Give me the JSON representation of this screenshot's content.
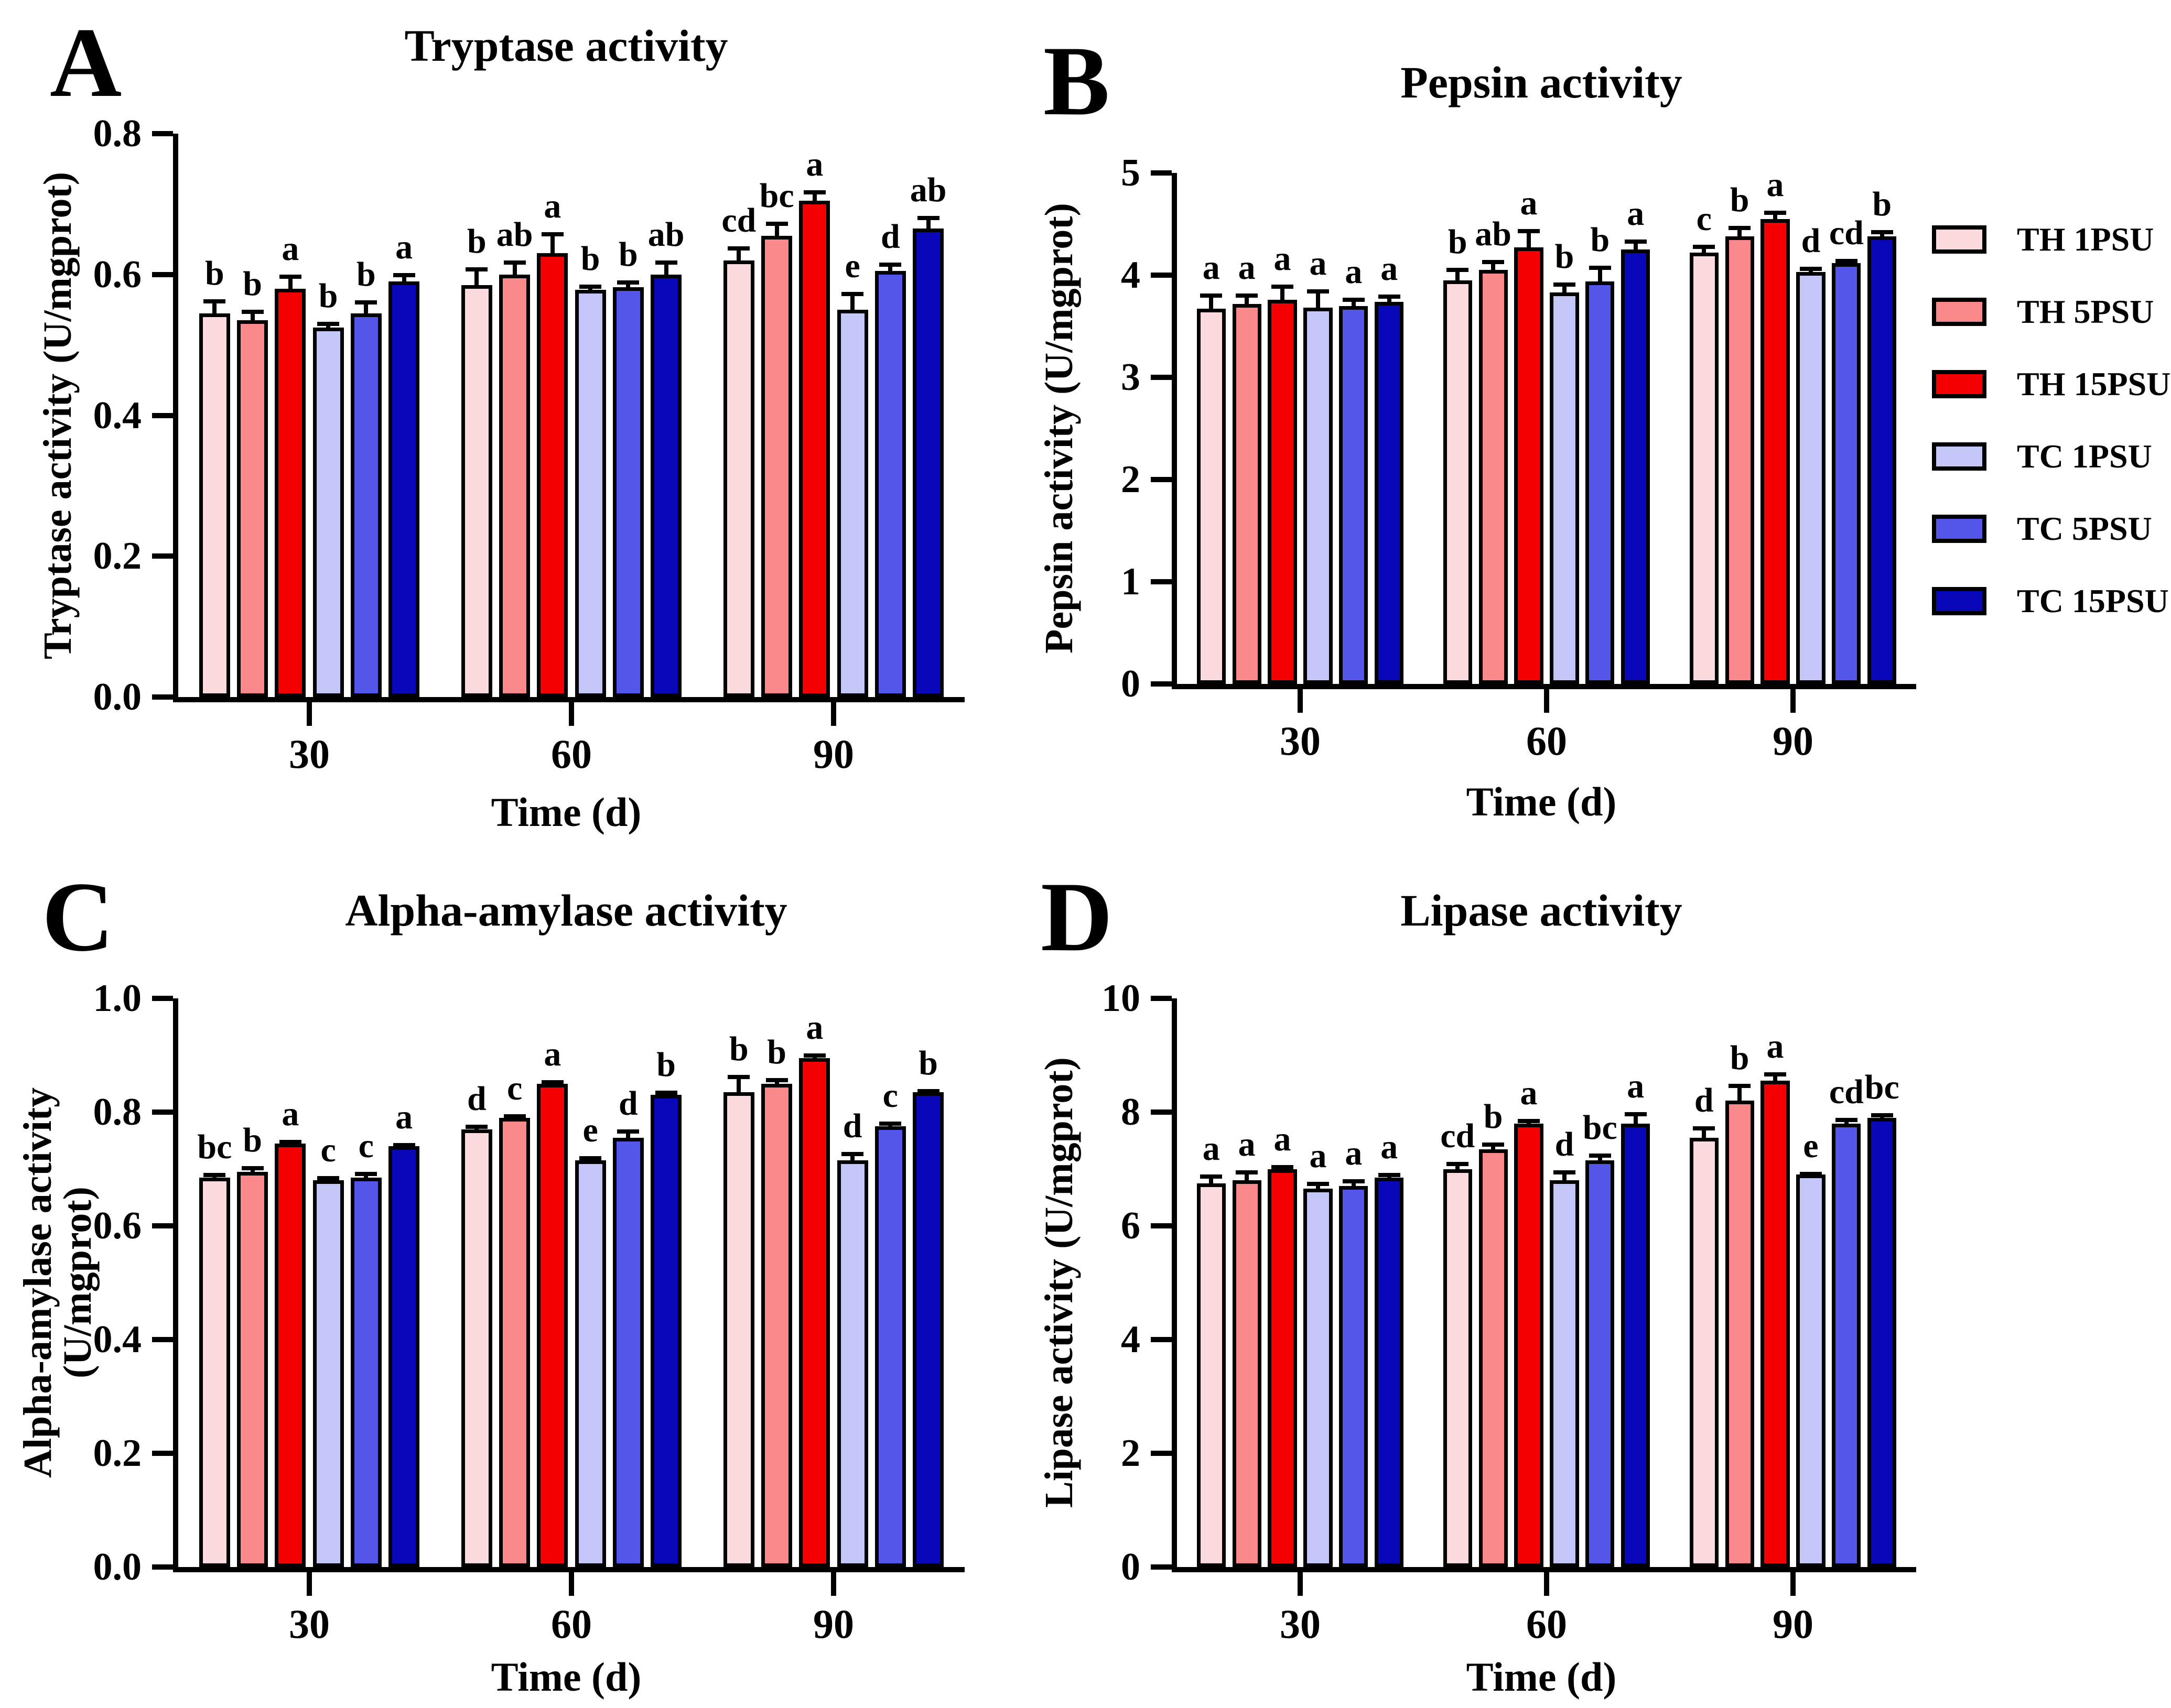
{
  "legend": {
    "items": [
      {
        "label": "TH 1PSU",
        "color": "#FBDBDD"
      },
      {
        "label": "TH 5PSU",
        "color": "#F9898A"
      },
      {
        "label": "TH 15PSU",
        "color": "#F40000"
      },
      {
        "label": "TC 1PSU",
        "color": "#C4C6F7"
      },
      {
        "label": "TC 5PSU",
        "color": "#5356E8"
      },
      {
        "label": "TC 15PSU",
        "color": "#0808B8"
      }
    ]
  },
  "chart_data": [
    {
      "type": "bar",
      "panel_letter": "A",
      "title": "Tryptase activity",
      "xlabel": "Time (d)",
      "ylabel": "Tryptase activity (U/mgprot)",
      "ylim": [
        0,
        0.8
      ],
      "yticks": [
        0,
        0.2,
        0.4,
        0.6,
        0.8
      ],
      "ytick_labels": [
        "0.0",
        "0.2",
        "0.4",
        "0.6",
        "0.8"
      ],
      "categories": [
        "30",
        "60",
        "90"
      ],
      "grid": false,
      "legend_position": "right",
      "series": [
        {
          "name": "TH 1PSU",
          "color": "#FBDBDD",
          "values": [
            0.545,
            0.585,
            0.62
          ],
          "errors": [
            0.02,
            0.025,
            0.02
          ],
          "letters": [
            "b",
            "b",
            "cd"
          ]
        },
        {
          "name": "TH 5PSU",
          "color": "#F9898A",
          "values": [
            0.535,
            0.6,
            0.655
          ],
          "errors": [
            0.015,
            0.02,
            0.02
          ],
          "letters": [
            "b",
            "ab",
            "bc"
          ]
        },
        {
          "name": "TH 15PSU",
          "color": "#F40000",
          "values": [
            0.58,
            0.63,
            0.705
          ],
          "errors": [
            0.02,
            0.03,
            0.015
          ],
          "letters": [
            "a",
            "a",
            "a"
          ]
        },
        {
          "name": "TC 1PSU",
          "color": "#C4C6F7",
          "values": [
            0.525,
            0.578,
            0.55
          ],
          "errors": [
            0.008,
            0.008,
            0.025
          ],
          "letters": [
            "b",
            "b",
            "e"
          ]
        },
        {
          "name": "TC 5PSU",
          "color": "#5356E8",
          "values": [
            0.545,
            0.582,
            0.605
          ],
          "errors": [
            0.018,
            0.01,
            0.012
          ],
          "letters": [
            "b",
            "b",
            "d"
          ]
        },
        {
          "name": "TC 15PSU",
          "color": "#0808B8",
          "values": [
            0.59,
            0.6,
            0.665
          ],
          "errors": [
            0.012,
            0.02,
            0.018
          ],
          "letters": [
            "a",
            "ab",
            "ab"
          ]
        }
      ]
    },
    {
      "type": "bar",
      "panel_letter": "B",
      "title": "Pepsin activity",
      "xlabel": "Time (d)",
      "ylabel": "Pepsin activity (U/mgprot)",
      "ylim": [
        0,
        5
      ],
      "yticks": [
        0,
        1,
        2,
        3,
        4,
        5
      ],
      "ytick_labels": [
        "0",
        "1",
        "2",
        "3",
        "4",
        "5"
      ],
      "categories": [
        "30",
        "60",
        "90"
      ],
      "grid": false,
      "legend_position": "right",
      "series": [
        {
          "name": "TH 1PSU",
          "color": "#FBDBDD",
          "values": [
            3.67,
            3.95,
            4.22
          ],
          "errors": [
            0.15,
            0.12,
            0.08
          ],
          "letters": [
            "a",
            "b",
            "c"
          ]
        },
        {
          "name": "TH 5PSU",
          "color": "#F9898A",
          "values": [
            3.72,
            4.05,
            4.38
          ],
          "errors": [
            0.1,
            0.1,
            0.1
          ],
          "letters": [
            "a",
            "ab",
            "b"
          ]
        },
        {
          "name": "TH 15PSU",
          "color": "#F40000",
          "values": [
            3.76,
            4.27,
            4.55
          ],
          "errors": [
            0.15,
            0.18,
            0.08
          ],
          "letters": [
            "a",
            "a",
            "a"
          ]
        },
        {
          "name": "TC 1PSU",
          "color": "#C4C6F7",
          "values": [
            3.68,
            3.83,
            4.03
          ],
          "errors": [
            0.18,
            0.1,
            0.05
          ],
          "letters": [
            "a",
            "b",
            "d"
          ]
        },
        {
          "name": "TC 5PSU",
          "color": "#5356E8",
          "values": [
            3.7,
            3.94,
            4.12
          ],
          "errors": [
            0.08,
            0.15,
            0.04
          ],
          "letters": [
            "a",
            "b",
            "cd"
          ]
        },
        {
          "name": "TC 15PSU",
          "color": "#0808B8",
          "values": [
            3.74,
            4.25,
            4.38
          ],
          "errors": [
            0.07,
            0.1,
            0.06
          ],
          "letters": [
            "a",
            "a",
            "b"
          ]
        }
      ]
    },
    {
      "type": "bar",
      "panel_letter": "C",
      "title": "Alpha-amylase activity",
      "xlabel": "Time (d)",
      "ylabel": "Alpha-amylase activity (U/mgprot)",
      "ylim": [
        0,
        1.0
      ],
      "yticks": [
        0,
        0.2,
        0.4,
        0.6,
        0.8,
        1.0
      ],
      "ytick_labels": [
        "0.0",
        "0.2",
        "0.4",
        "0.6",
        "0.8",
        "1.0"
      ],
      "categories": [
        "30",
        "60",
        "90"
      ],
      "grid": false,
      "legend_position": "right",
      "series": [
        {
          "name": "TH 1PSU",
          "color": "#FBDBDD",
          "values": [
            0.685,
            0.77,
            0.835
          ],
          "errors": [
            0.008,
            0.008,
            0.03
          ],
          "letters": [
            "bc",
            "d",
            "b"
          ]
        },
        {
          "name": "TH 5PSU",
          "color": "#F9898A",
          "values": [
            0.695,
            0.79,
            0.85
          ],
          "errors": [
            0.01,
            0.006,
            0.01
          ],
          "letters": [
            "b",
            "c",
            "b"
          ]
        },
        {
          "name": "TH 15PSU",
          "color": "#F40000",
          "values": [
            0.745,
            0.85,
            0.895
          ],
          "errors": [
            0.006,
            0.006,
            0.008
          ],
          "letters": [
            "a",
            "a",
            "a"
          ]
        },
        {
          "name": "TC 1PSU",
          "color": "#C4C6F7",
          "values": [
            0.68,
            0.715,
            0.715
          ],
          "errors": [
            0.008,
            0.008,
            0.015
          ],
          "letters": [
            "c",
            "e",
            "d"
          ]
        },
        {
          "name": "TC 5PSU",
          "color": "#5356E8",
          "values": [
            0.685,
            0.755,
            0.775
          ],
          "errors": [
            0.01,
            0.015,
            0.008
          ],
          "letters": [
            "c",
            "d",
            "c"
          ]
        },
        {
          "name": "TC 15PSU",
          "color": "#0808B8",
          "values": [
            0.74,
            0.83,
            0.835
          ],
          "errors": [
            0.006,
            0.008,
            0.006
          ],
          "letters": [
            "a",
            "b",
            "b"
          ]
        }
      ]
    },
    {
      "type": "bar",
      "panel_letter": "D",
      "title": "Lipase activity",
      "xlabel": "Time (d)",
      "ylabel": "Lipase activity (U/mgprot)",
      "ylim": [
        0,
        10
      ],
      "yticks": [
        0,
        2,
        4,
        6,
        8,
        10
      ],
      "ytick_labels": [
        "0",
        "2",
        "4",
        "6",
        "8",
        "10"
      ],
      "categories": [
        "30",
        "60",
        "90"
      ],
      "grid": false,
      "legend_position": "right",
      "series": [
        {
          "name": "TH 1PSU",
          "color": "#FBDBDD",
          "values": [
            6.75,
            7.0,
            7.55
          ],
          "errors": [
            0.15,
            0.12,
            0.2
          ],
          "letters": [
            "a",
            "cd",
            "d"
          ]
        },
        {
          "name": "TH 5PSU",
          "color": "#F9898A",
          "values": [
            6.8,
            7.35,
            8.2
          ],
          "errors": [
            0.18,
            0.12,
            0.3
          ],
          "letters": [
            "a",
            "b",
            "b"
          ]
        },
        {
          "name": "TH 15PSU",
          "color": "#F40000",
          "values": [
            7.0,
            7.8,
            8.55
          ],
          "errors": [
            0.07,
            0.08,
            0.15
          ],
          "letters": [
            "a",
            "a",
            "a"
          ]
        },
        {
          "name": "TC 1PSU",
          "color": "#C4C6F7",
          "values": [
            6.65,
            6.8,
            6.9
          ],
          "errors": [
            0.12,
            0.18,
            0.05
          ],
          "letters": [
            "a",
            "d",
            "e"
          ]
        },
        {
          "name": "TC 5PSU",
          "color": "#5356E8",
          "values": [
            6.7,
            7.15,
            7.8
          ],
          "errors": [
            0.12,
            0.12,
            0.1
          ],
          "letters": [
            "a",
            "bc",
            "cd"
          ]
        },
        {
          "name": "TC 15PSU",
          "color": "#0808B8",
          "values": [
            6.85,
            7.8,
            7.9
          ],
          "errors": [
            0.08,
            0.2,
            0.08
          ],
          "letters": [
            "a",
            "a",
            "bc"
          ]
        }
      ]
    }
  ]
}
